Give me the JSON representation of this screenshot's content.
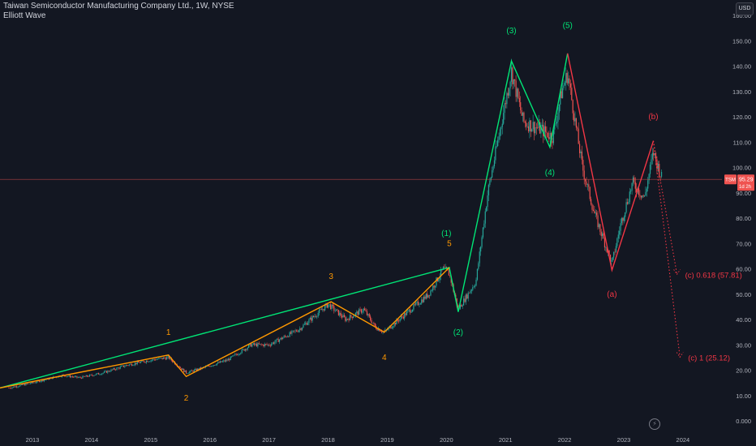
{
  "header": {
    "title": "Taiwan Semiconductor Manufacturing Company Ltd., 1W, NYSE",
    "indicator": "Elliott Wave",
    "currency": "USD"
  },
  "price_badge": {
    "symbol": "TSM",
    "price": "95.29",
    "countdown": "1d 2h"
  },
  "colors": {
    "background": "#131722",
    "up": "#26a69a",
    "down": "#ef5350",
    "impulse_cycle": "#00e676",
    "impulse_primary": "#ff9800",
    "correction": "#f23645",
    "axis_text": "#b2b5be"
  },
  "chart_data": {
    "type": "line",
    "title": "Taiwan Semiconductor Manufacturing Company Ltd., 1W, NYSE",
    "x_ticks": [
      "2013",
      "2014",
      "2015",
      "2016",
      "2017",
      "2018",
      "2019",
      "2020",
      "2021",
      "2022",
      "2023",
      "2024"
    ],
    "y_ticks": [
      "0.000",
      "10.00",
      "20.00",
      "30.00",
      "40.00",
      "50.00",
      "60.00",
      "70.00",
      "80.00",
      "90.00",
      "100.00",
      "110.00",
      "120.00",
      "130.00",
      "140.00",
      "150.00",
      "160.00"
    ],
    "ylim": [
      0,
      160
    ],
    "current_price": 95.29,
    "price_series": [
      {
        "x": 2012.6,
        "y": 13
      },
      {
        "x": 2013.0,
        "y": 15
      },
      {
        "x": 2013.5,
        "y": 18
      },
      {
        "x": 2013.8,
        "y": 17
      },
      {
        "x": 2014.2,
        "y": 19
      },
      {
        "x": 2014.6,
        "y": 22
      },
      {
        "x": 2015.0,
        "y": 24
      },
      {
        "x": 2015.3,
        "y": 25
      },
      {
        "x": 2015.6,
        "y": 19
      },
      {
        "x": 2015.9,
        "y": 21
      },
      {
        "x": 2016.3,
        "y": 24
      },
      {
        "x": 2016.7,
        "y": 30
      },
      {
        "x": 2017.0,
        "y": 30
      },
      {
        "x": 2017.5,
        "y": 36
      },
      {
        "x": 2017.9,
        "y": 44
      },
      {
        "x": 2018.0,
        "y": 46
      },
      {
        "x": 2018.3,
        "y": 40
      },
      {
        "x": 2018.6,
        "y": 44
      },
      {
        "x": 2018.8,
        "y": 37
      },
      {
        "x": 2018.95,
        "y": 35
      },
      {
        "x": 2019.3,
        "y": 42
      },
      {
        "x": 2019.7,
        "y": 50
      },
      {
        "x": 2019.95,
        "y": 60
      },
      {
        "x": 2020.05,
        "y": 58
      },
      {
        "x": 2020.2,
        "y": 44
      },
      {
        "x": 2020.5,
        "y": 55
      },
      {
        "x": 2020.7,
        "y": 90
      },
      {
        "x": 2020.95,
        "y": 120
      },
      {
        "x": 2021.1,
        "y": 138
      },
      {
        "x": 2021.3,
        "y": 118
      },
      {
        "x": 2021.6,
        "y": 115
      },
      {
        "x": 2021.8,
        "y": 112
      },
      {
        "x": 2021.95,
        "y": 130
      },
      {
        "x": 2022.05,
        "y": 137
      },
      {
        "x": 2022.3,
        "y": 100
      },
      {
        "x": 2022.5,
        "y": 82
      },
      {
        "x": 2022.8,
        "y": 62
      },
      {
        "x": 2022.95,
        "y": 78
      },
      {
        "x": 2023.15,
        "y": 94
      },
      {
        "x": 2023.35,
        "y": 88
      },
      {
        "x": 2023.5,
        "y": 106
      },
      {
        "x": 2023.65,
        "y": 95.29
      }
    ],
    "series": [
      {
        "color": "#00e676",
        "points": [
          {
            "x": 2012.45,
            "y": 13
          },
          {
            "x": 2020.05,
            "y": 60.5
          },
          {
            "x": 2020.2,
            "y": 43
          },
          {
            "x": 2021.1,
            "y": 142
          },
          {
            "x": 2021.75,
            "y": 108
          },
          {
            "x": 2022.05,
            "y": 145
          }
        ]
      },
      {
        "color": "#ff9800",
        "points": [
          {
            "x": 2012.45,
            "y": 13
          },
          {
            "x": 2015.3,
            "y": 26
          },
          {
            "x": 2015.6,
            "y": 17.5
          },
          {
            "x": 2018.05,
            "y": 47
          },
          {
            "x": 2018.95,
            "y": 35
          },
          {
            "x": 2020.05,
            "y": 60.5
          }
        ]
      },
      {
        "color": "#f23645",
        "points": [
          {
            "x": 2022.05,
            "y": 145
          },
          {
            "x": 2022.8,
            "y": 59.5
          },
          {
            "x": 2023.5,
            "y": 110.5
          }
        ]
      }
    ],
    "projections": [
      {
        "color": "#f23645",
        "points": [
          {
            "x": 2023.5,
            "y": 110.5
          },
          {
            "x": 2023.9,
            "y": 57.81
          }
        ],
        "label": "(c) 0.618 (57.81)"
      },
      {
        "color": "#f23645",
        "points": [
          {
            "x": 2023.5,
            "y": 110.5
          },
          {
            "x": 2023.95,
            "y": 25.12
          }
        ],
        "label": "(c) 1 (25.12)"
      }
    ],
    "wave_labels": [
      {
        "text": "(1)",
        "x": 2020.0,
        "y": 73,
        "color": "#00e676"
      },
      {
        "text": "(2)",
        "x": 2020.2,
        "y": 34,
        "color": "#00e676"
      },
      {
        "text": "(3)",
        "x": 2021.1,
        "y": 153,
        "color": "#00e676"
      },
      {
        "text": "(4)",
        "x": 2021.75,
        "y": 97,
        "color": "#00e676"
      },
      {
        "text": "(5)",
        "x": 2022.05,
        "y": 155,
        "color": "#00e676"
      },
      {
        "text": "1",
        "x": 2015.3,
        "y": 34,
        "color": "#ff9800"
      },
      {
        "text": "2",
        "x": 2015.6,
        "y": 8,
        "color": "#ff9800"
      },
      {
        "text": "3",
        "x": 2018.05,
        "y": 56,
        "color": "#ff9800"
      },
      {
        "text": "4",
        "x": 2018.95,
        "y": 24,
        "color": "#ff9800"
      },
      {
        "text": "5",
        "x": 2020.05,
        "y": 69,
        "color": "#ff9800"
      },
      {
        "text": "(a)",
        "x": 2022.8,
        "y": 49,
        "color": "#f23645"
      },
      {
        "text": "(b)",
        "x": 2023.5,
        "y": 119,
        "color": "#f23645"
      }
    ]
  }
}
